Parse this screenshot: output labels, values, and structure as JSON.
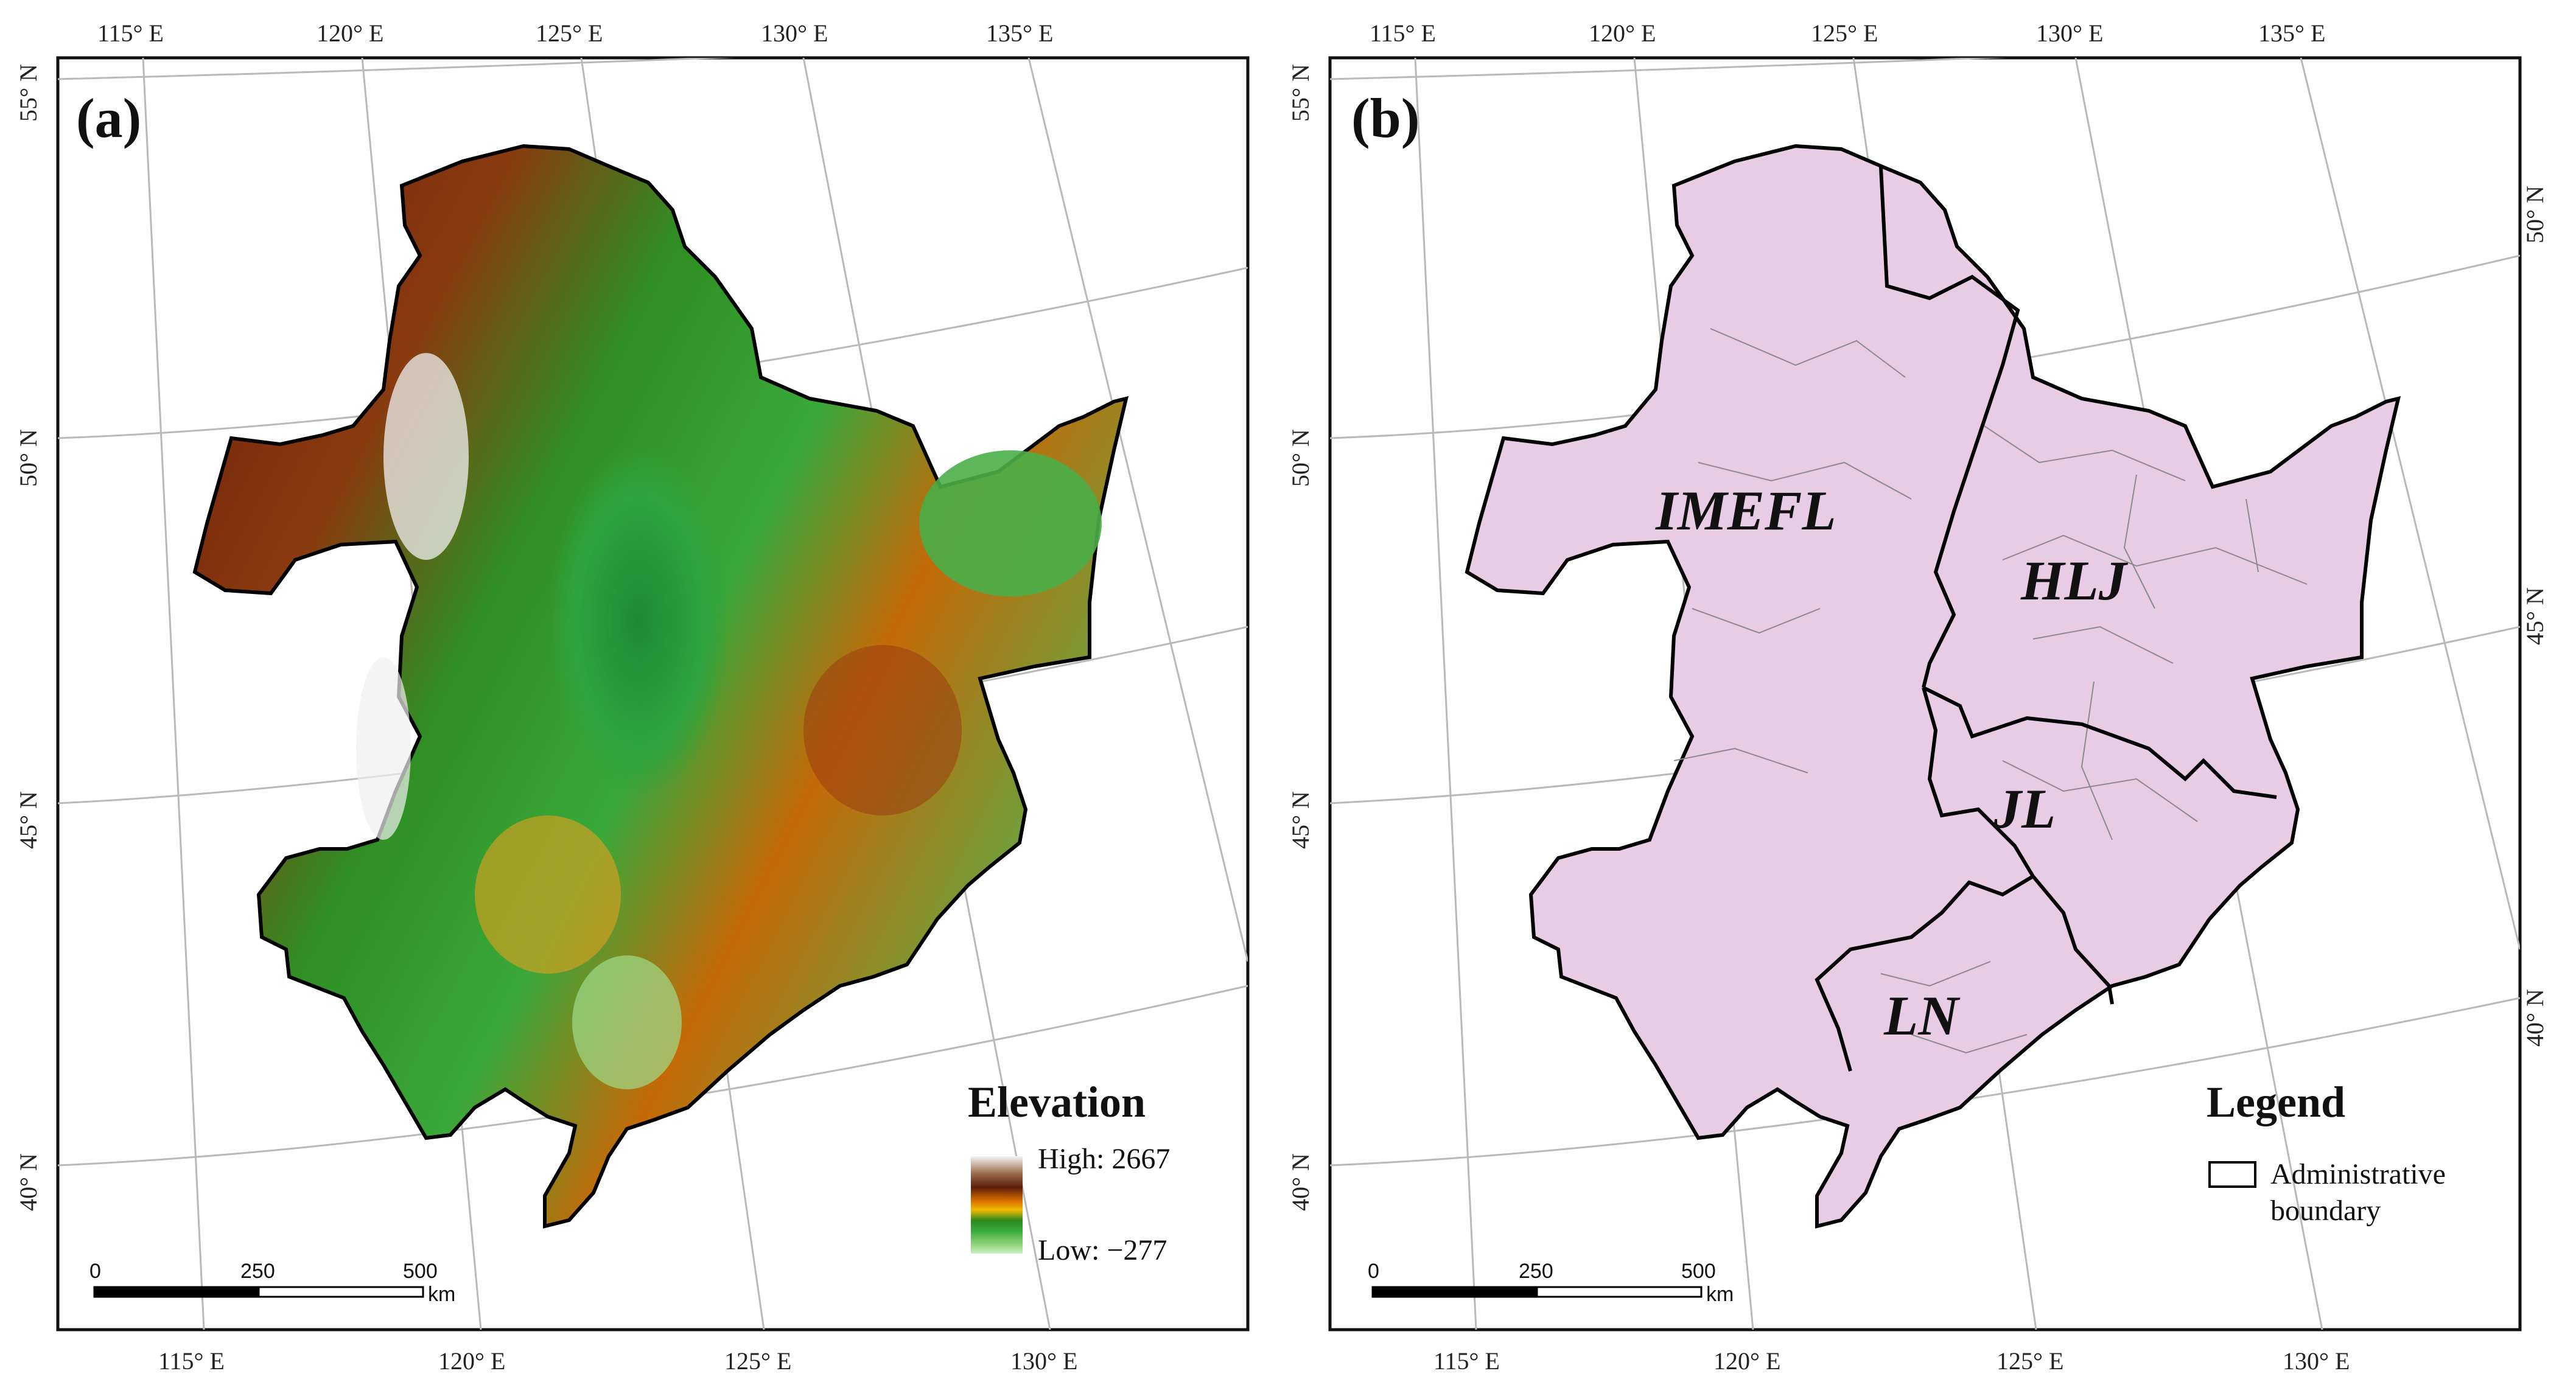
{
  "panels": {
    "a": {
      "label": "(a)",
      "top_ticks": [
        "115° E",
        "120° E",
        "125° E",
        "130° E",
        "135° E"
      ],
      "bottom_ticks": [
        "115° E",
        "120° E",
        "125° E",
        "130° E"
      ],
      "left_ticks": [
        "55° N",
        "50° N",
        "45° N",
        "40° N"
      ],
      "legend": {
        "title": "Elevation",
        "high": "High: 2667",
        "low": "Low: −277",
        "colors": [
          "#f5f5f5",
          "#9a6a4a",
          "#5a1e08",
          "#d36a00",
          "#f2b900",
          "#2c8a1e",
          "#36a838",
          "#8dd27a",
          "#c7f0c0"
        ]
      },
      "scale": {
        "labels": [
          "0",
          "250",
          "500"
        ],
        "unit": "km"
      }
    },
    "b": {
      "label": "(b)",
      "top_ticks": [
        "115° E",
        "120° E",
        "125° E",
        "130° E",
        "135° E"
      ],
      "bottom_ticks": [
        "115° E",
        "120° E",
        "125° E",
        "130° E"
      ],
      "left_ticks": [
        "55° N",
        "50° N",
        "45° N",
        "40° N"
      ],
      "right_ticks": [
        "50° N",
        "45° N",
        "40° N"
      ],
      "regions": [
        "IMEFL",
        "HLJ",
        "JL",
        "LN"
      ],
      "legend": {
        "title": "Legend",
        "item_line1": "Administrative",
        "item_line2": "boundary",
        "fill_color": "#e8cce4"
      },
      "scale": {
        "labels": [
          "0",
          "250",
          "500"
        ],
        "unit": "km"
      }
    }
  }
}
